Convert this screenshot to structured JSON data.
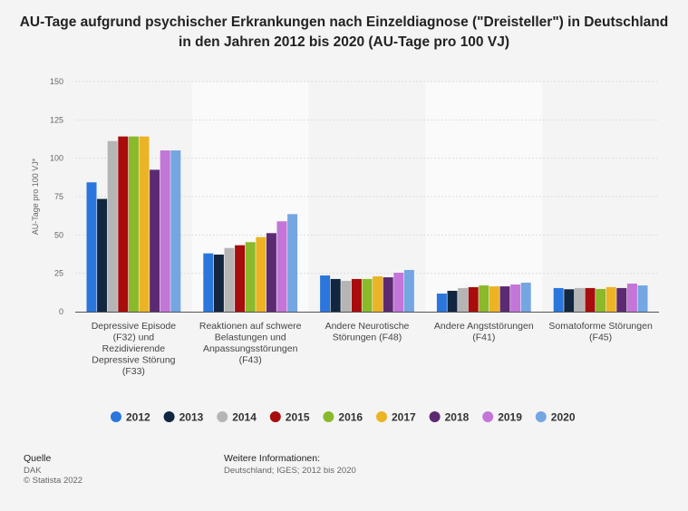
{
  "chart_data": {
    "type": "bar",
    "title": "AU-Tage aufgrund psychischer Erkrankungen nach Einzeldiagnose (\"Dreisteller\") in Deutschland in den Jahren 2012 bis 2020 (AU-Tage pro 100 VJ)",
    "ylabel": "AU-Tage pro 100 VJ*",
    "xlabel": "",
    "ylim": [
      0,
      150
    ],
    "yticks": [
      0,
      25,
      50,
      75,
      100,
      125,
      150
    ],
    "grid": true,
    "legend": "bottom",
    "categories": [
      [
        "Depressive Episode",
        "(F32) und",
        "Rezidivierende",
        "Depressive Störung",
        "(F33)"
      ],
      [
        "Reaktionen auf schwere",
        "Belastungen und",
        "Anpassungsstörungen",
        "(F43)"
      ],
      [
        "Andere Neurotische",
        "Störungen (F48)"
      ],
      [
        "Andere Angststörungen",
        "(F41)"
      ],
      [
        "Somatoforme Störungen",
        "(F45)"
      ]
    ],
    "series": [
      {
        "name": "2012",
        "color": "#2a76dd",
        "values": [
          84.3,
          38.0,
          23.6,
          11.8,
          15.4
        ]
      },
      {
        "name": "2013",
        "color": "#12263f",
        "values": [
          73.5,
          37.2,
          21.3,
          13.6,
          14.6
        ]
      },
      {
        "name": "2014",
        "color": "#b5b5b5",
        "values": [
          111.2,
          41.5,
          20.1,
          15.4,
          15.4
        ]
      },
      {
        "name": "2015",
        "color": "#a80c0c",
        "values": [
          114.2,
          43.3,
          21.3,
          16.0,
          15.4
        ]
      },
      {
        "name": "2016",
        "color": "#8ab92a",
        "values": [
          114.2,
          45.3,
          21.3,
          17.1,
          14.8
        ]
      },
      {
        "name": "2017",
        "color": "#ecb324",
        "values": [
          114.2,
          48.6,
          23.0,
          16.5,
          16.0
        ]
      },
      {
        "name": "2018",
        "color": "#5c2a72",
        "values": [
          92.5,
          51.2,
          22.4,
          16.5,
          15.4
        ]
      },
      {
        "name": "2019",
        "color": "#c375d8",
        "values": [
          105.1,
          58.9,
          25.4,
          17.7,
          18.3
        ]
      },
      {
        "name": "2020",
        "color": "#74a6e2",
        "values": [
          105.1,
          63.6,
          27.2,
          18.9,
          17.1
        ]
      }
    ]
  },
  "footer": {
    "source_heading": "Quelle",
    "source": "DAK",
    "copyright": "© Statista 2022",
    "info_heading": "Weitere Informationen:",
    "info": "Deutschland; IGES; 2012 bis 2020"
  }
}
